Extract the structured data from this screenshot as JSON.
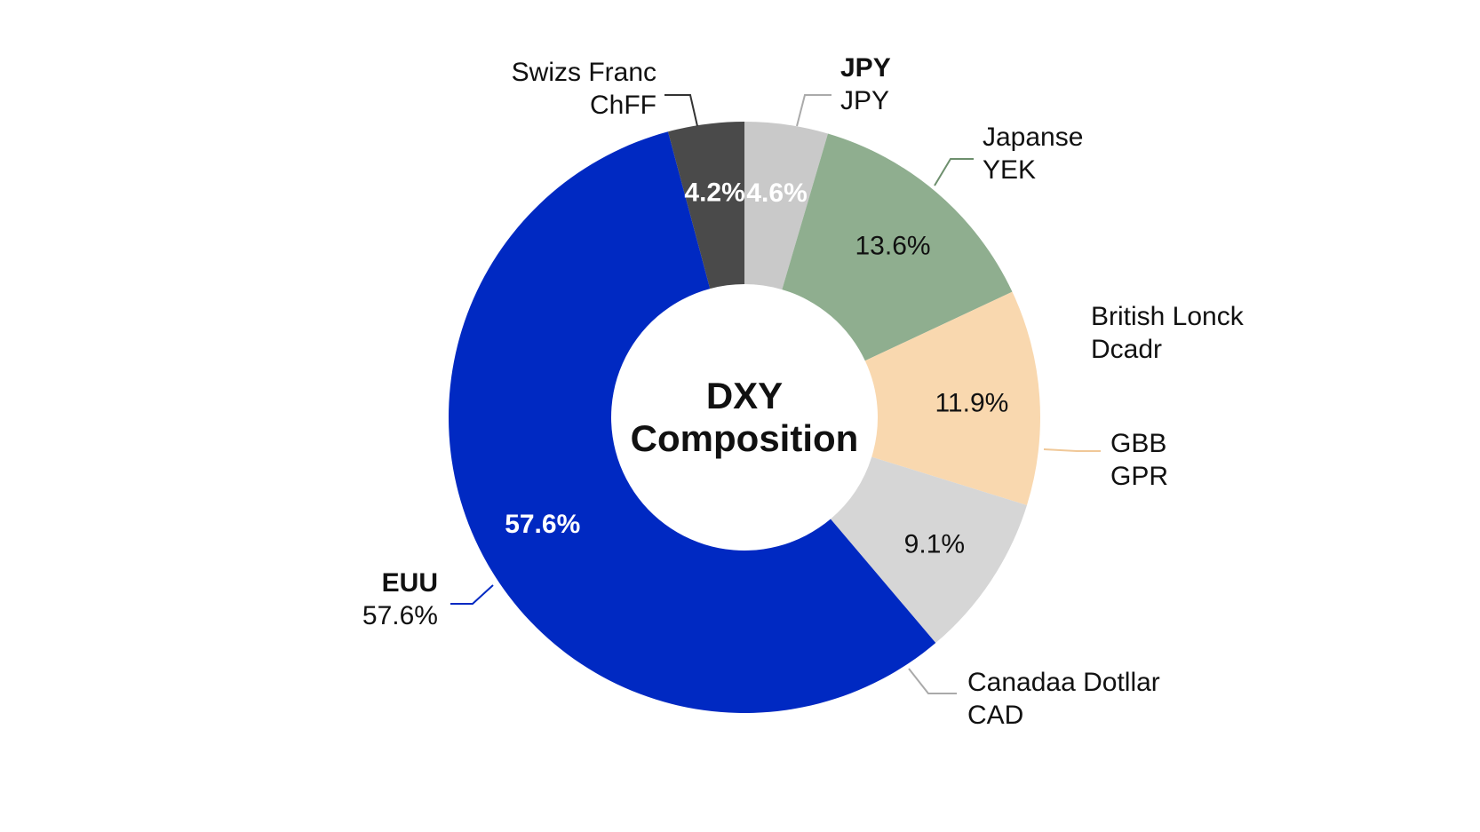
{
  "chart_data": {
    "type": "pie",
    "style": "donut",
    "center_title": [
      "DXY",
      "Composition"
    ],
    "slices": [
      {
        "label_lines": [
          "JPY",
          "JPY"
        ],
        "value": 4.6,
        "value_label": "4.6%",
        "color": "#c9c9c9",
        "text_color": "#ffffff"
      },
      {
        "label_lines": [
          "Japanse",
          "YEK"
        ],
        "value": 13.6,
        "value_label": "13.6%",
        "color": "#8fae8f",
        "text_color": "#111111"
      },
      {
        "label_lines": [
          "British Lonck",
          "Dcadr"
        ],
        "value": 11.9,
        "value_label": "11.9%",
        "color": "#f9d8af",
        "text_color": "#111111"
      },
      {
        "label_lines": [
          "GBB",
          "GPR"
        ],
        "value": null,
        "value_label": "",
        "color": "#f9d8af",
        "text_color": "#111111"
      },
      {
        "label_lines": [
          "Canadaa Dotllar",
          "CAD"
        ],
        "value": 9.1,
        "value_label": "9.1%",
        "color": "#d6d6d6",
        "text_color": "#111111"
      },
      {
        "label_lines": [
          "EUU",
          "57.6%"
        ],
        "value": 57.6,
        "value_label": "57.6%",
        "color": "#0029c2",
        "text_color": "#ffffff"
      },
      {
        "label_lines": [
          "Swizs Franc",
          "ChFF"
        ],
        "value": 4.2,
        "value_label": "4.2%",
        "color": "#4a4a4a",
        "text_color": "#ffffff"
      }
    ],
    "legend_placement": "callouts"
  }
}
